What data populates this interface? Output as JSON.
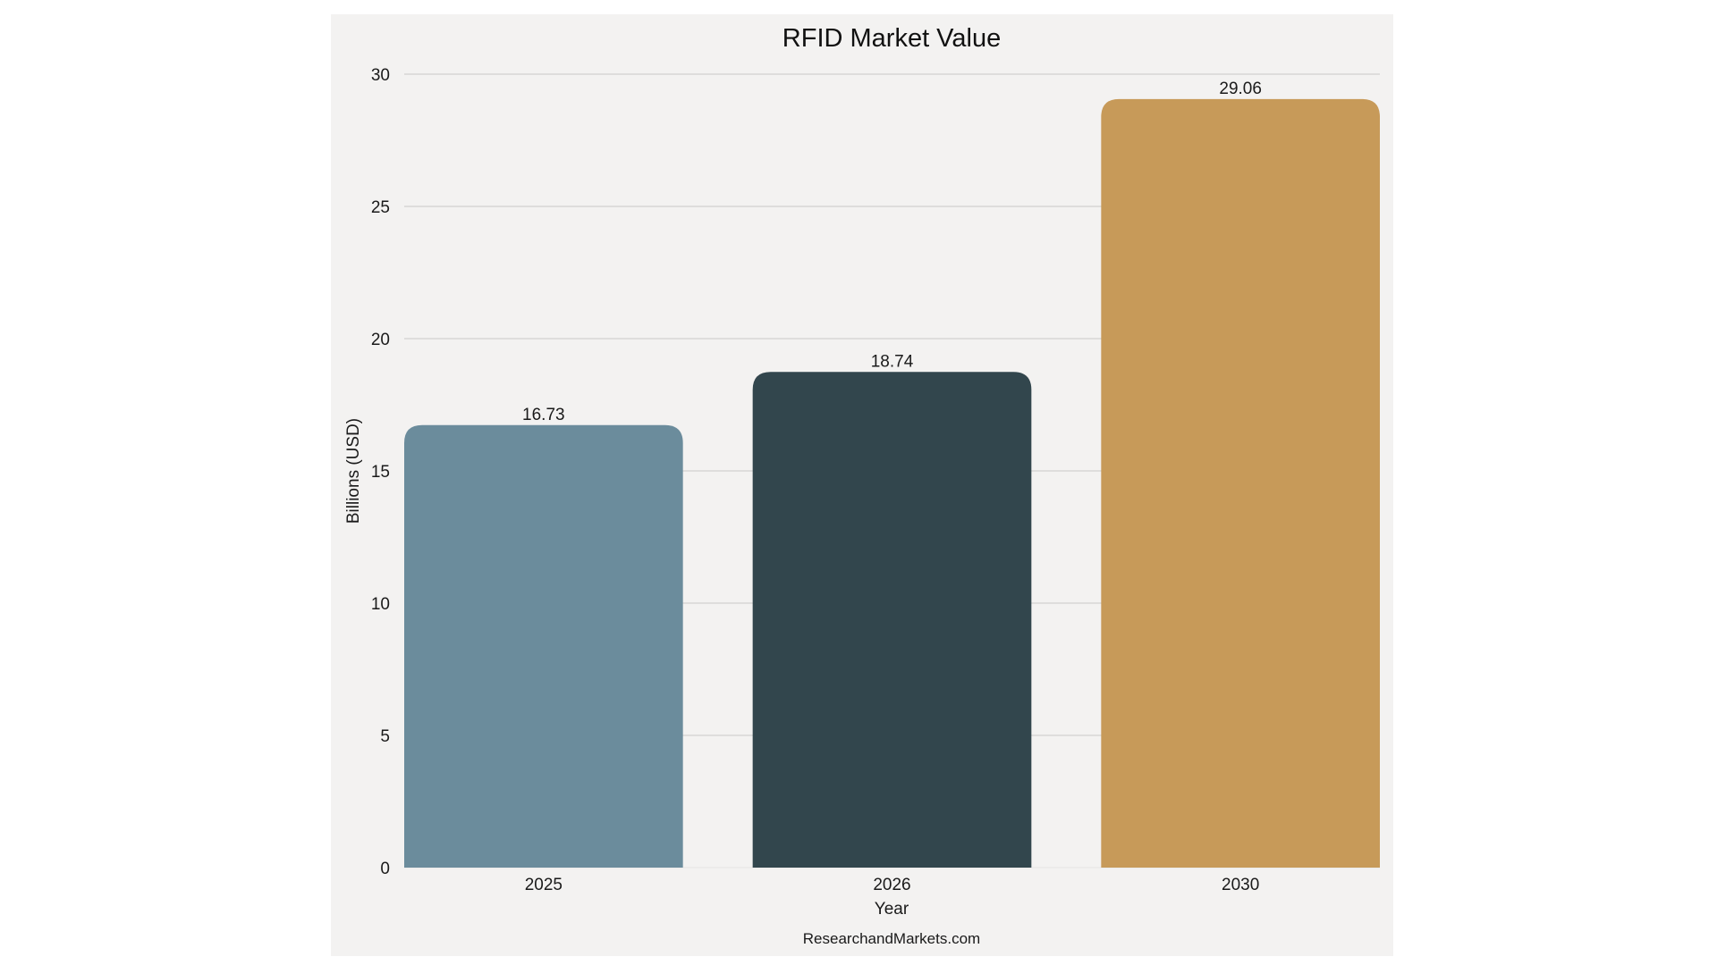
{
  "chart_data": {
    "type": "bar",
    "title": "RFID Market Value",
    "xlabel": "Year",
    "ylabel": "Billions (USD)",
    "categories": [
      "2025",
      "2026",
      "2030"
    ],
    "values": [
      16.73,
      18.74,
      29.06
    ],
    "value_labels": [
      "16.73",
      "18.74",
      "29.06"
    ],
    "bar_colors": [
      "#6b8c9c",
      "#32464d",
      "#c79a59"
    ],
    "ylim": [
      0,
      30
    ],
    "yticks": [
      0,
      5,
      10,
      15,
      20,
      25,
      30
    ],
    "grid": true,
    "legend": "none"
  },
  "source": "ResearchandMarkets.com",
  "colors": {
    "panel_background": "#f3f2f1",
    "gridline": "#c8c8c8"
  }
}
